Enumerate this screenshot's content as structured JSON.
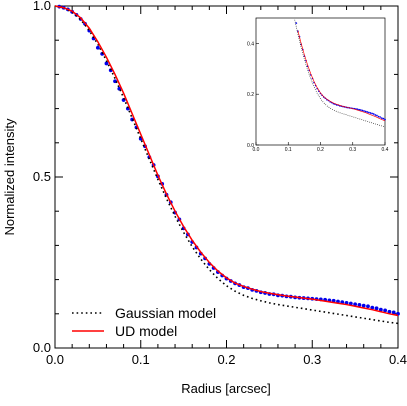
{
  "chart_data": {
    "type": "line",
    "title": "",
    "xlabel": "Radius [arcsec]",
    "ylabel": "Normalized intensity",
    "xlim": [
      0,
      0.4
    ],
    "ylim": [
      0,
      1.0
    ],
    "x_ticks": [
      "0.0",
      "0.1",
      "0.2",
      "0.3",
      "0.4"
    ],
    "y_ticks": [
      "0.0",
      "0.5",
      "1.0"
    ],
    "grid": false,
    "legend_position": "bottom-left",
    "legend": [
      {
        "label": "Gaussian model",
        "style": "dotted",
        "color": "#000000"
      },
      {
        "label": "UD model",
        "style": "solid",
        "color": "#ff0000"
      }
    ],
    "series": [
      {
        "name": "UD model",
        "style": "solid",
        "color": "#ff0000",
        "x": [
          0,
          0.01,
          0.02,
          0.03,
          0.04,
          0.05,
          0.06,
          0.07,
          0.08,
          0.09,
          0.1,
          0.11,
          0.12,
          0.13,
          0.14,
          0.15,
          0.16,
          0.17,
          0.18,
          0.19,
          0.2,
          0.21,
          0.22,
          0.23,
          0.24,
          0.25,
          0.26,
          0.27,
          0.28,
          0.29,
          0.3,
          0.31,
          0.32,
          0.33,
          0.34,
          0.35,
          0.36,
          0.37,
          0.38,
          0.39,
          0.4
        ],
        "y": [
          1.0,
          0.995,
          0.985,
          0.965,
          0.935,
          0.895,
          0.85,
          0.8,
          0.745,
          0.685,
          0.625,
          0.565,
          0.505,
          0.45,
          0.4,
          0.355,
          0.315,
          0.28,
          0.25,
          0.225,
          0.205,
          0.19,
          0.18,
          0.172,
          0.165,
          0.16,
          0.156,
          0.152,
          0.149,
          0.146,
          0.143,
          0.139,
          0.135,
          0.131,
          0.127,
          0.122,
          0.117,
          0.112,
          0.106,
          0.1,
          0.095
        ]
      },
      {
        "name": "Gaussian model",
        "style": "dotted",
        "color": "#000000",
        "x": [
          0,
          0.01,
          0.02,
          0.03,
          0.04,
          0.05,
          0.06,
          0.07,
          0.08,
          0.09,
          0.1,
          0.11,
          0.12,
          0.13,
          0.14,
          0.15,
          0.16,
          0.17,
          0.18,
          0.19,
          0.2,
          0.21,
          0.22,
          0.23,
          0.24,
          0.25,
          0.26,
          0.27,
          0.28,
          0.29,
          0.3,
          0.31,
          0.32,
          0.33,
          0.34,
          0.35,
          0.36,
          0.37,
          0.38,
          0.39,
          0.4
        ],
        "y": [
          1.0,
          0.995,
          0.982,
          0.96,
          0.928,
          0.888,
          0.84,
          0.788,
          0.732,
          0.672,
          0.612,
          0.552,
          0.493,
          0.437,
          0.385,
          0.338,
          0.296,
          0.26,
          0.229,
          0.203,
          0.182,
          0.166,
          0.154,
          0.145,
          0.138,
          0.132,
          0.127,
          0.123,
          0.119,
          0.115,
          0.111,
          0.107,
          0.103,
          0.099,
          0.095,
          0.091,
          0.087,
          0.083,
          0.079,
          0.075,
          0.072
        ]
      },
      {
        "name": "",
        "style": "points",
        "color": "#0000ee",
        "x": [
          0.005,
          0.01,
          0.015,
          0.02,
          0.025,
          0.03,
          0.035,
          0.04,
          0.045,
          0.05,
          0.055,
          0.06,
          0.065,
          0.07,
          0.075,
          0.08,
          0.085,
          0.09,
          0.095,
          0.1,
          0.105,
          0.11,
          0.115,
          0.12,
          0.125,
          0.13,
          0.135,
          0.14,
          0.145,
          0.15,
          0.155,
          0.16,
          0.165,
          0.17,
          0.175,
          0.18,
          0.185,
          0.19,
          0.195,
          0.2,
          0.205,
          0.21,
          0.215,
          0.22,
          0.225,
          0.23,
          0.235,
          0.24,
          0.245,
          0.25,
          0.255,
          0.26,
          0.265,
          0.27,
          0.275,
          0.28,
          0.285,
          0.29,
          0.295,
          0.3,
          0.305,
          0.31,
          0.315,
          0.32,
          0.325,
          0.33,
          0.335,
          0.34,
          0.345,
          0.35,
          0.355,
          0.36,
          0.365,
          0.37,
          0.375,
          0.38,
          0.385,
          0.39,
          0.395,
          0.4
        ],
        "y": [
          0.998,
          0.995,
          0.99,
          0.983,
          0.974,
          0.962,
          0.948,
          0.928,
          0.905,
          0.878,
          0.86,
          0.832,
          0.812,
          0.78,
          0.758,
          0.725,
          0.7,
          0.668,
          0.645,
          0.612,
          0.59,
          0.558,
          0.535,
          0.502,
          0.48,
          0.448,
          0.426,
          0.396,
          0.376,
          0.35,
          0.332,
          0.31,
          0.294,
          0.276,
          0.262,
          0.246,
          0.234,
          0.222,
          0.212,
          0.203,
          0.196,
          0.189,
          0.184,
          0.178,
          0.175,
          0.17,
          0.167,
          0.163,
          0.161,
          0.158,
          0.157,
          0.154,
          0.153,
          0.151,
          0.15,
          0.148,
          0.147,
          0.146,
          0.145,
          0.144,
          0.143,
          0.142,
          0.141,
          0.139,
          0.138,
          0.136,
          0.134,
          0.132,
          0.13,
          0.128,
          0.126,
          0.124,
          0.122,
          0.118,
          0.116,
          0.112,
          0.11,
          0.106,
          0.104,
          0.1
        ]
      }
    ],
    "inset": {
      "x_ticks": [
        "0.0",
        "0.1",
        "0.2",
        "0.3",
        "0.4"
      ],
      "y_ticks": [
        "0.0",
        "0.2",
        "0.4"
      ]
    }
  },
  "colors": {
    "ud_model": "#ff0000",
    "gaussian_model": "#000000",
    "data_points": "#0000ee"
  }
}
